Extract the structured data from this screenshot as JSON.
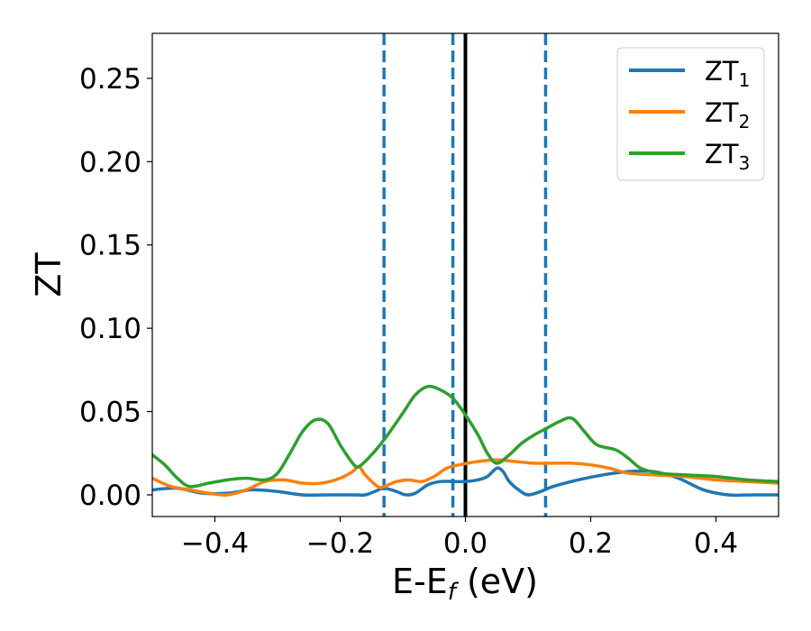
{
  "chart_data": {
    "type": "line",
    "xlabel": "E-E",
    "xlabel_sub": "f",
    "xlabel_unit": "(eV)",
    "ylabel": "ZT",
    "xlim": [
      -0.5,
      0.5
    ],
    "ylim": [
      -0.013,
      0.277
    ],
    "xticks": [
      -0.4,
      -0.2,
      0.0,
      0.2,
      0.4
    ],
    "xtick_labels": [
      "−0.4",
      "−0.2",
      "0.0",
      "0.2",
      "0.4"
    ],
    "yticks": [
      0.0,
      0.05,
      0.1,
      0.15,
      0.2,
      0.25
    ],
    "ytick_labels": [
      "0.00",
      "0.05",
      "0.10",
      "0.15",
      "0.20",
      "0.25"
    ],
    "grid": false,
    "legend_position": "top-right",
    "vlines": [
      {
        "x": -0.13,
        "style": "dashed",
        "color": "#1f77b4"
      },
      {
        "x": -0.02,
        "style": "dashed",
        "color": "#1f77b4"
      },
      {
        "x": 0.0,
        "style": "solid",
        "color": "#000000"
      },
      {
        "x": 0.128,
        "style": "dashed",
        "color": "#1f77b4"
      }
    ],
    "series": [
      {
        "name": "ZT",
        "sub": "1",
        "color": "#1f77b4",
        "x": [
          -0.5,
          -0.46,
          -0.42,
          -0.38,
          -0.34,
          -0.3,
          -0.26,
          -0.22,
          -0.18,
          -0.16,
          -0.145,
          -0.13,
          -0.11,
          -0.095,
          -0.08,
          -0.06,
          -0.04,
          -0.02,
          0.0,
          0.02,
          0.035,
          0.05,
          0.06,
          0.07,
          0.085,
          0.1,
          0.12,
          0.14,
          0.18,
          0.22,
          0.26,
          0.3,
          0.34,
          0.38,
          0.42,
          0.46,
          0.5
        ],
        "y": [
          0.003,
          0.004,
          0.001,
          0.001,
          0.003,
          0.002,
          0.0,
          0.0,
          0.0,
          0.0,
          0.002,
          0.004,
          0.002,
          0.0,
          0.001,
          0.006,
          0.008,
          0.008,
          0.008,
          0.009,
          0.011,
          0.016,
          0.014,
          0.008,
          0.003,
          0.0,
          0.002,
          0.005,
          0.009,
          0.012,
          0.014,
          0.014,
          0.01,
          0.003,
          0.0,
          0.0,
          0.0
        ]
      },
      {
        "name": "ZT",
        "sub": "2",
        "color": "#ff7f0e",
        "x": [
          -0.5,
          -0.47,
          -0.44,
          -0.41,
          -0.38,
          -0.35,
          -0.32,
          -0.29,
          -0.26,
          -0.23,
          -0.2,
          -0.18,
          -0.17,
          -0.16,
          -0.14,
          -0.13,
          -0.11,
          -0.09,
          -0.07,
          -0.05,
          -0.03,
          -0.01,
          0.02,
          0.05,
          0.08,
          0.11,
          0.14,
          0.17,
          0.2,
          0.23,
          0.26,
          0.3,
          0.35,
          0.4,
          0.45,
          0.5
        ],
        "y": [
          0.01,
          0.005,
          0.003,
          0.001,
          0.0,
          0.003,
          0.008,
          0.009,
          0.007,
          0.007,
          0.01,
          0.014,
          0.017,
          0.012,
          0.005,
          0.005,
          0.008,
          0.009,
          0.008,
          0.011,
          0.016,
          0.018,
          0.02,
          0.021,
          0.02,
          0.019,
          0.019,
          0.019,
          0.018,
          0.016,
          0.013,
          0.012,
          0.011,
          0.009,
          0.008,
          0.007
        ]
      },
      {
        "name": "ZT",
        "sub": "3",
        "color": "#2ca02c",
        "x": [
          -0.5,
          -0.48,
          -0.46,
          -0.44,
          -0.41,
          -0.38,
          -0.35,
          -0.32,
          -0.3,
          -0.28,
          -0.26,
          -0.24,
          -0.22,
          -0.2,
          -0.18,
          -0.17,
          -0.15,
          -0.13,
          -0.1,
          -0.08,
          -0.06,
          -0.04,
          -0.02,
          0.0,
          0.02,
          0.035,
          0.05,
          0.07,
          0.09,
          0.11,
          0.13,
          0.15,
          0.17,
          0.19,
          0.21,
          0.24,
          0.26,
          0.28,
          0.31,
          0.35,
          0.4,
          0.45,
          0.5
        ],
        "y": [
          0.024,
          0.018,
          0.01,
          0.005,
          0.007,
          0.009,
          0.01,
          0.009,
          0.013,
          0.025,
          0.038,
          0.045,
          0.043,
          0.03,
          0.019,
          0.017,
          0.024,
          0.033,
          0.049,
          0.06,
          0.065,
          0.063,
          0.058,
          0.048,
          0.036,
          0.025,
          0.019,
          0.024,
          0.031,
          0.036,
          0.04,
          0.044,
          0.046,
          0.038,
          0.03,
          0.027,
          0.022,
          0.016,
          0.013,
          0.012,
          0.011,
          0.009,
          0.008
        ]
      }
    ]
  }
}
